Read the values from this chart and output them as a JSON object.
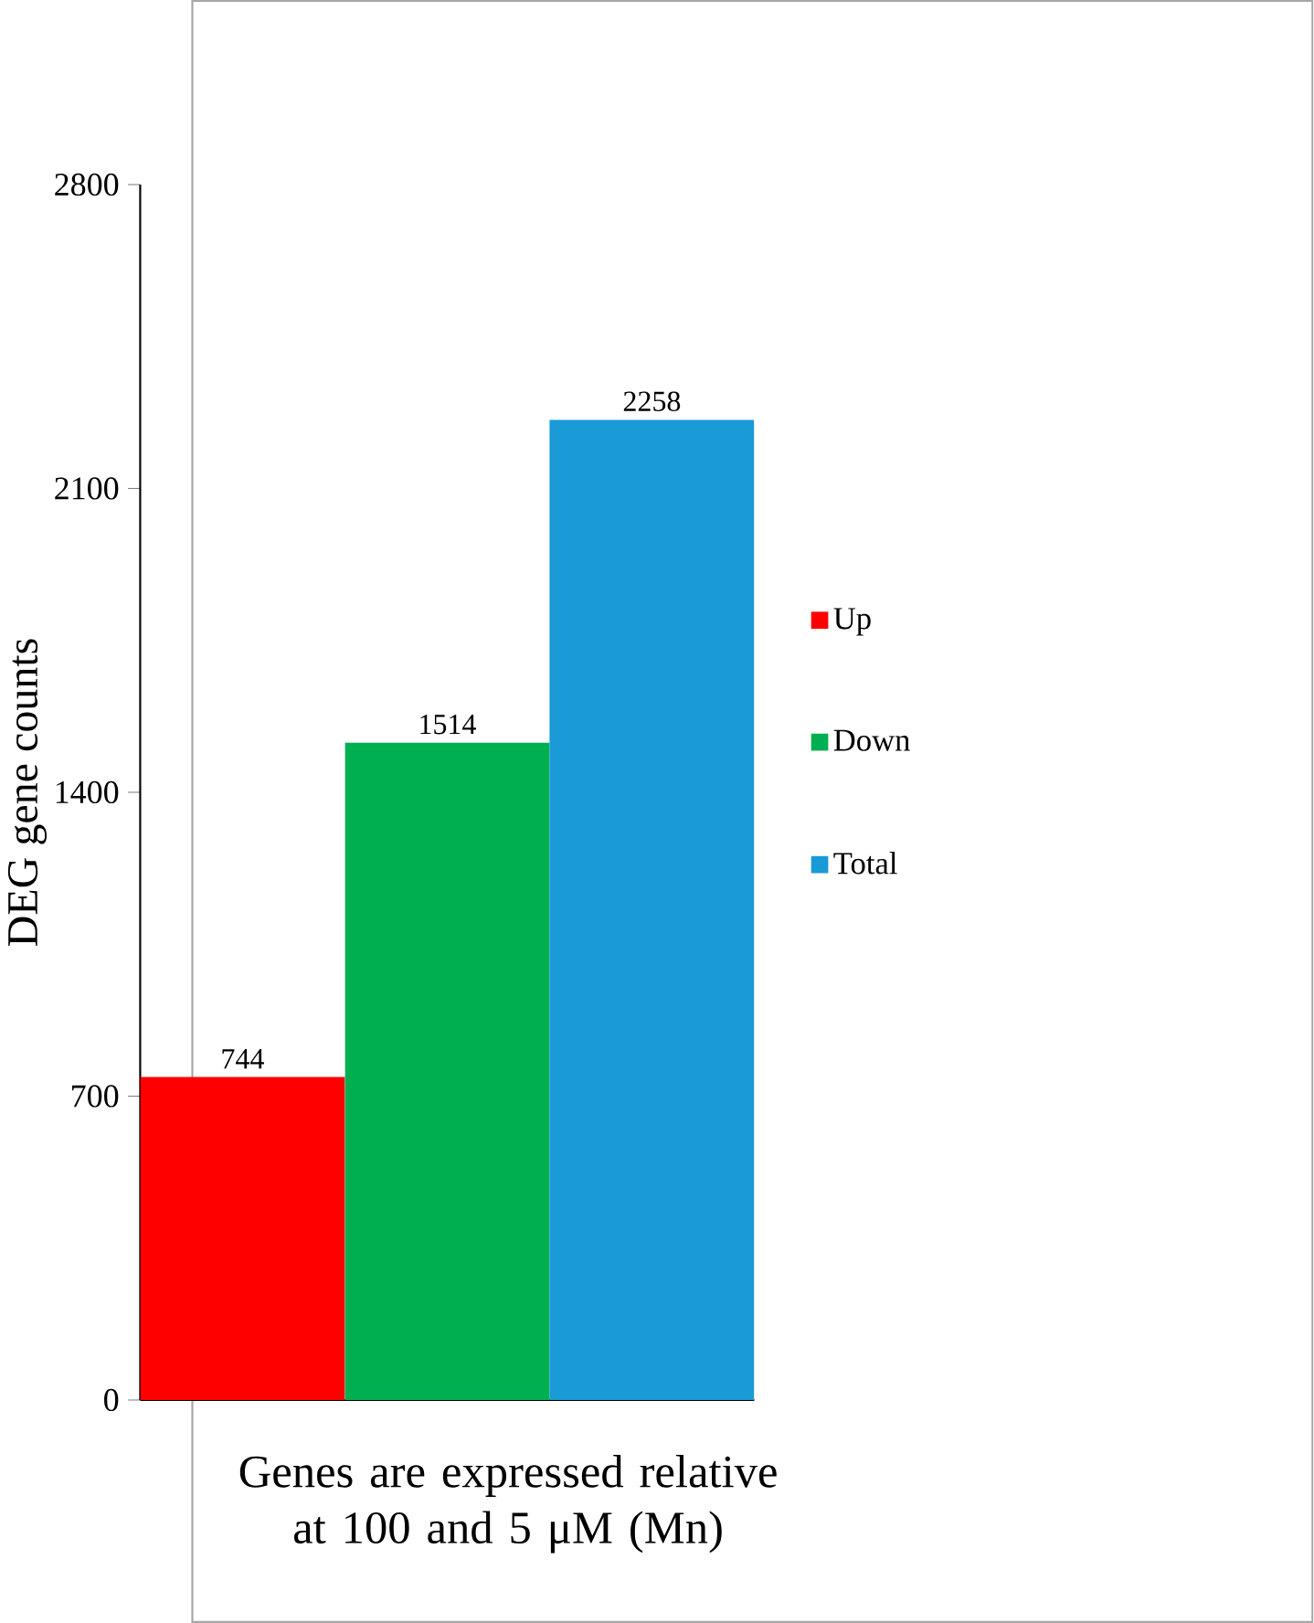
{
  "chart_data": {
    "type": "bar",
    "xlabel": "Genes are expressed relative at 100 and 5 μM (Mn)",
    "ylabel": "DEG gene counts",
    "categories": [
      null
    ],
    "series": [
      {
        "name": "Up",
        "color": "#ff0000",
        "values": [
          744
        ]
      },
      {
        "name": "Down",
        "color": "#00b050",
        "values": [
          1514
        ]
      },
      {
        "name": "Total",
        "color": "#1a9ad6",
        "values": [
          2258
        ]
      }
    ],
    "ylim": [
      0,
      2800
    ],
    "yticks": [
      0,
      700,
      1400,
      2100,
      2800
    ],
    "data_labels": true,
    "legend": "right",
    "grid": false
  }
}
